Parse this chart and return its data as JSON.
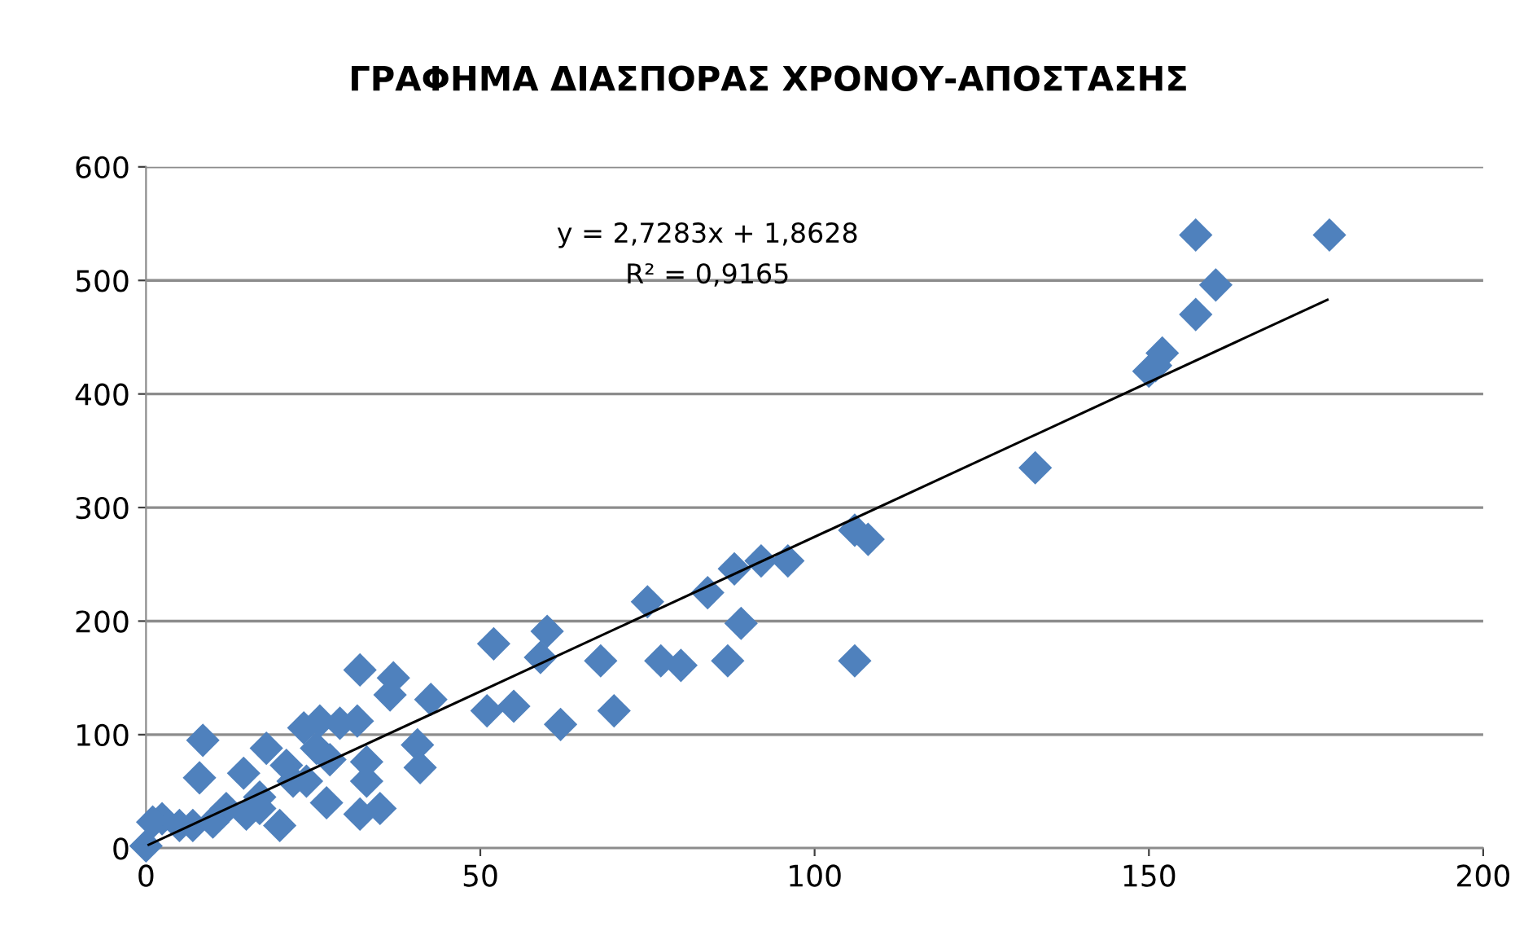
{
  "chart_data": {
    "type": "scatter",
    "title": "ΓΡΑΦΗΜΑ ΔΙΑΣΠΟΡΑΣ ΧΡΟΝΟΥ-ΑΠΟΣΤΑΣΗΣ",
    "annotations": [
      "y = 2,7283x + 1,8628",
      "R² = 0,9165"
    ],
    "xlim": [
      0,
      200
    ],
    "xticks": [
      0,
      50,
      100,
      150,
      200
    ],
    "ylim": [
      0,
      600
    ],
    "yticks": [
      0,
      100,
      200,
      300,
      400,
      500,
      600
    ],
    "grid": "y",
    "legend": false,
    "series": [
      {
        "marker": "diamond",
        "color": "#4f81bd",
        "x": [
          157,
          177,
          160,
          157,
          152,
          151,
          150,
          133,
          106,
          108,
          106,
          96,
          92,
          88,
          89,
          87,
          84,
          80,
          77,
          75,
          68,
          70,
          62,
          60,
          59,
          52,
          51,
          55,
          8.5,
          8,
          32,
          37,
          31.6,
          42.6,
          40.6,
          41,
          33,
          33,
          32,
          35,
          26,
          25.5,
          18,
          21,
          14.6,
          27,
          20,
          12,
          7,
          2.4,
          0,
          36.5,
          22,
          17,
          24,
          27.5,
          23.6,
          1,
          5,
          10,
          15,
          17,
          29
        ],
        "values": [
          540,
          540,
          496,
          470,
          436,
          425,
          420,
          335,
          280,
          272,
          165,
          253,
          253,
          246,
          198,
          165,
          225,
          161,
          165,
          217,
          165,
          121,
          109,
          191,
          168,
          180,
          121,
          125,
          95,
          62,
          157,
          150,
          112,
          131,
          91,
          71,
          76,
          59,
          30,
          35,
          112,
          88,
          88,
          73,
          66,
          40,
          20,
          35,
          20,
          26,
          2,
          135,
          59,
          45,
          59,
          78,
          106,
          23,
          20,
          23,
          30,
          35,
          110
        ]
      },
      {
        "type": "line",
        "color": "#000000",
        "x": [
          0.4,
          176.7
        ],
        "values": [
          3,
          483
        ]
      }
    ]
  }
}
